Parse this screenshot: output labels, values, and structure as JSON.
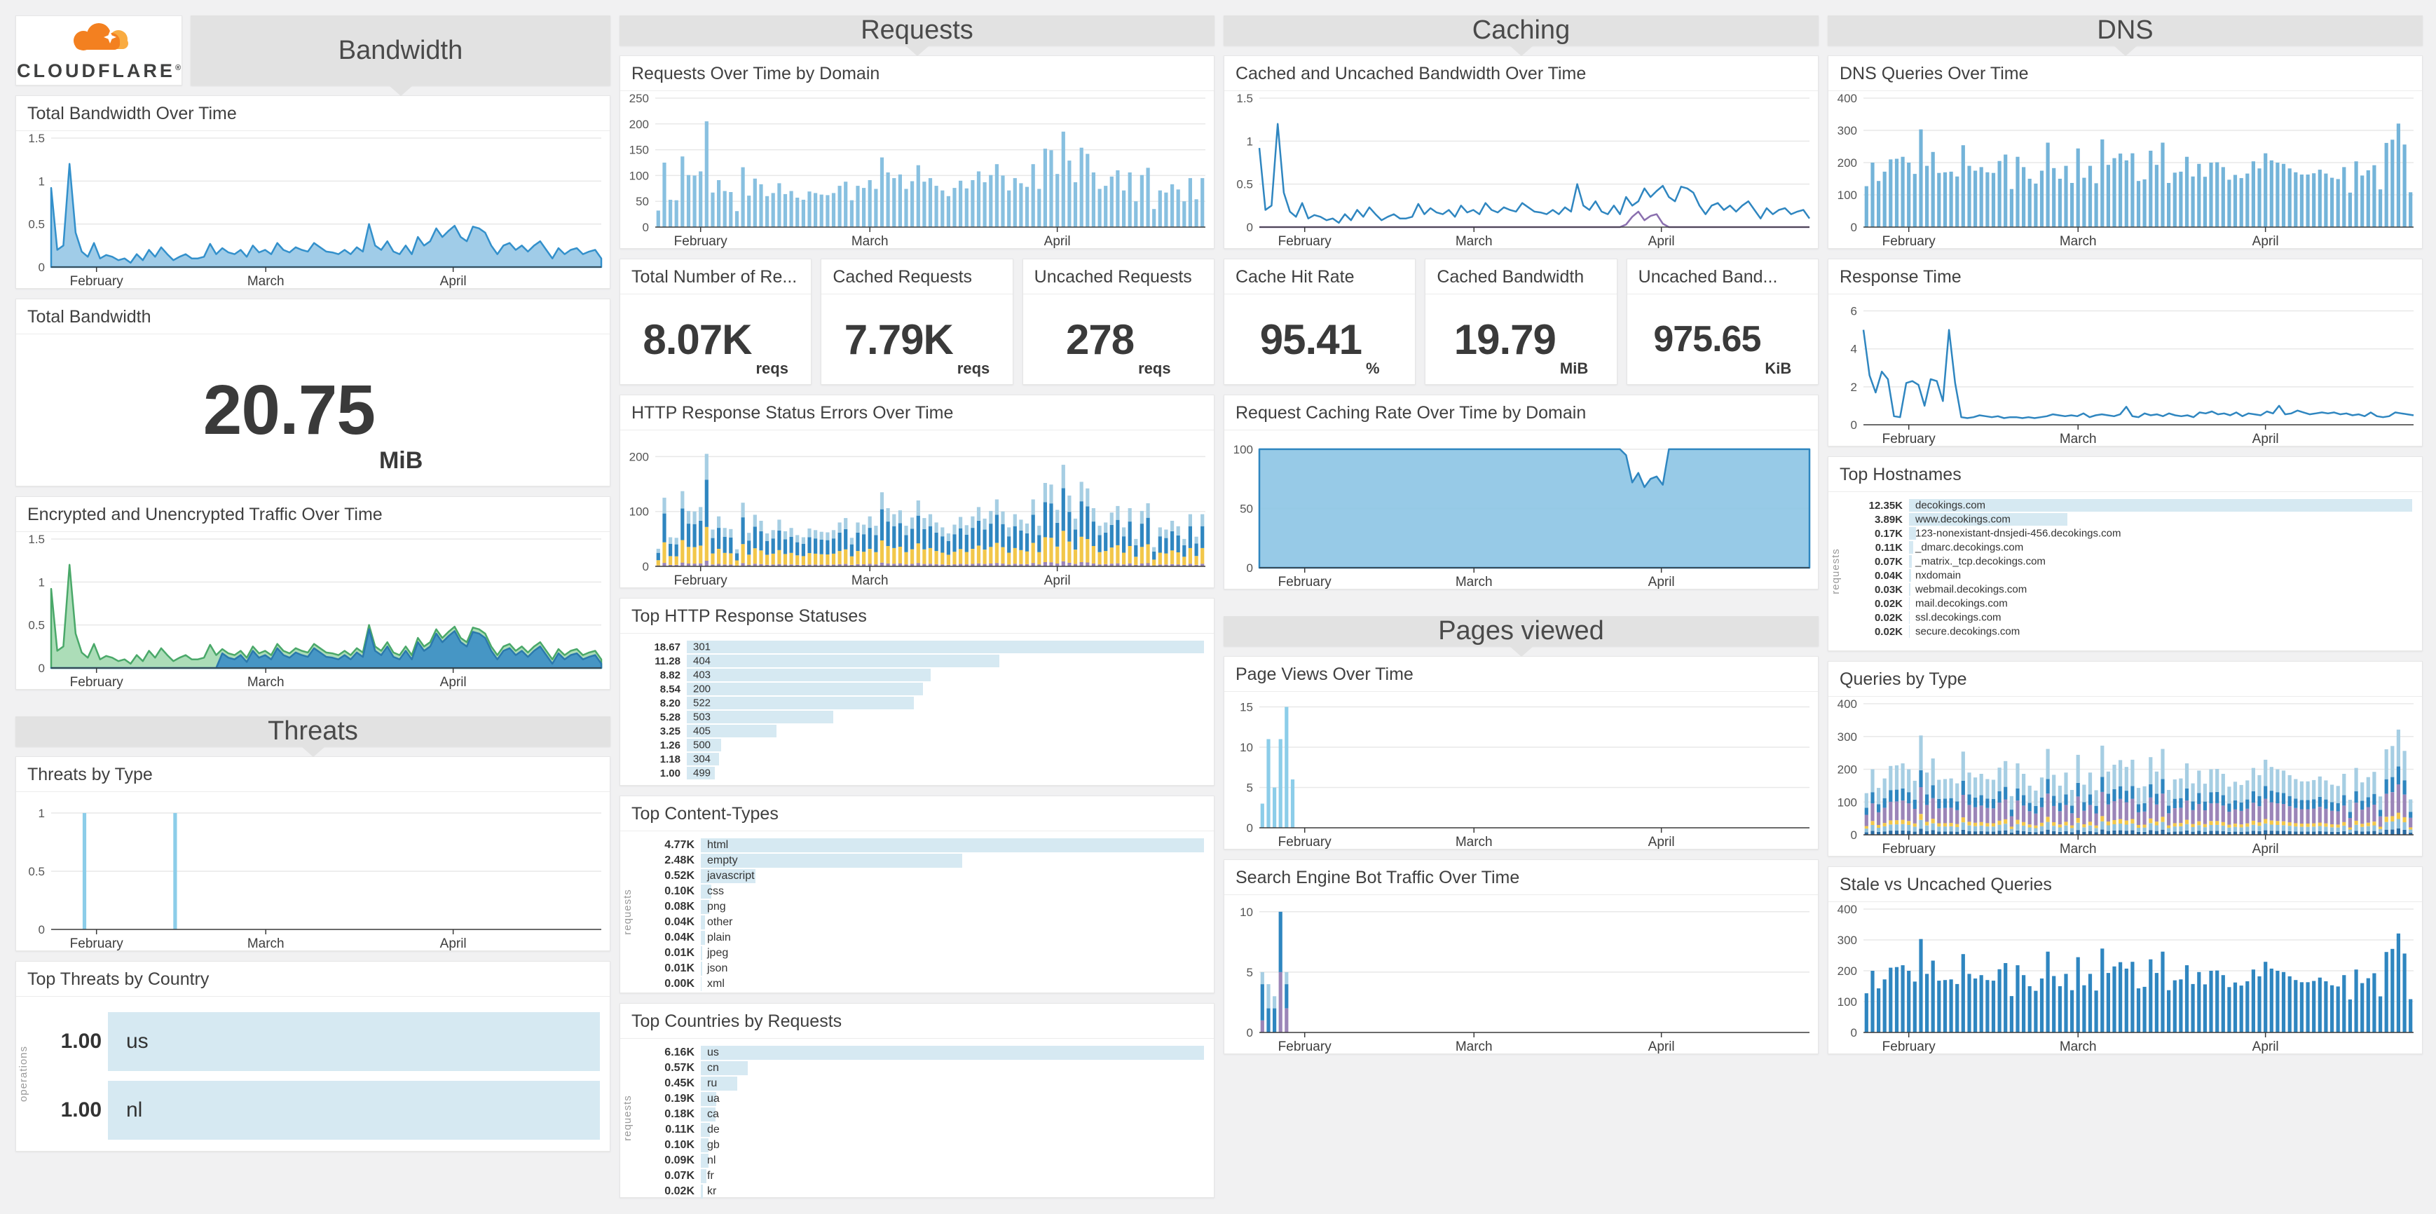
{
  "logo": {
    "brand": "CLOUDFLARE",
    "registered": "®"
  },
  "sections": {
    "bandwidth": "Bandwidth",
    "requests": "Requests",
    "caching": "Caching",
    "dns": "DNS",
    "threats": "Threats",
    "pages_viewed": "Pages viewed"
  },
  "titles": {
    "total_bw_over_time": "Total Bandwidth Over Time",
    "enc_traffic": "Encrypted and Unencrypted Traffic Over Time",
    "threats_by_type": "Threats by Type",
    "top_threats_country": "Top Threats by Country",
    "req_over_time": "Requests Over Time by Domain",
    "http_errors": "HTTP Response Status Errors Over Time",
    "top_statuses": "Top HTTP Response Statuses",
    "top_content_types": "Top Content-Types",
    "top_countries": "Top Countries by Requests",
    "cached_uncached_bw": "Cached and Uncached Bandwidth Over Time",
    "req_caching_rate": "Request Caching Rate Over Time by Domain",
    "page_views": "Page Views Over Time",
    "bot_traffic": "Search Engine Bot Traffic Over Time",
    "dns_queries": "DNS Queries Over Time",
    "response_time": "Response Time",
    "top_hostnames": "Top Hostnames",
    "queries_by_type": "Queries by Type",
    "stale_uncached": "Stale vs Uncached Queries"
  },
  "stats": {
    "total_bandwidth": {
      "title": "Total Bandwidth",
      "value": "20.75",
      "unit": "MiB"
    },
    "total_requests": {
      "title": "Total Number of Re...",
      "value": "8.07K",
      "unit": "reqs"
    },
    "cached_requests": {
      "title": "Cached Requests",
      "value": "7.79K",
      "unit": "reqs"
    },
    "uncached_requests": {
      "title": "Uncached Requests",
      "value": "278",
      "unit": "reqs"
    },
    "cache_hit_rate": {
      "title": "Cache Hit Rate",
      "value": "95.41",
      "unit": "%"
    },
    "cached_bandwidth": {
      "title": "Cached Bandwidth",
      "value": "19.79",
      "unit": "MiB"
    },
    "uncached_bandwidth": {
      "title": "Uncached Band...",
      "value": "975.65",
      "unit": "KiB"
    }
  },
  "colors": {
    "accent_blue": "#2f86c0",
    "light_bar": "#88c0e0",
    "pale_bar": "#8ccde9",
    "dns_bar": "#74b4d9",
    "hbar_fill": "#d6e9f2",
    "green_fill": "#a3d9b0",
    "green_stroke": "#4aa869",
    "yellow": "#f2c74a",
    "purple": "#9b85b8",
    "pale_blue": "#a6cee3",
    "header_bg": "#e2e2e2",
    "page_bg": "#f1f1f2",
    "cf_orange": "#f38020",
    "cf_light_orange": "#f9ab41"
  },
  "axis": {
    "months": [
      "February",
      "March",
      "April"
    ],
    "month_ticks": [
      7,
      35,
      66
    ],
    "points": 91
  },
  "timeseries": {
    "bandwidth_daily": [
      0.92,
      0.2,
      0.25,
      1.2,
      0.4,
      0.18,
      0.12,
      0.28,
      0.1,
      0.14,
      0.12,
      0.08,
      0.1,
      0.05,
      0.15,
      0.08,
      0.2,
      0.12,
      0.23,
      0.15,
      0.08,
      0.12,
      0.15,
      0.1,
      0.1,
      0.12,
      0.27,
      0.15,
      0.22,
      0.17,
      0.15,
      0.2,
      0.12,
      0.25,
      0.17,
      0.2,
      0.15,
      0.28,
      0.2,
      0.17,
      0.23,
      0.2,
      0.18,
      0.28,
      0.23,
      0.18,
      0.17,
      0.15,
      0.2,
      0.15,
      0.23,
      0.18,
      0.5,
      0.25,
      0.2,
      0.3,
      0.18,
      0.15,
      0.25,
      0.15,
      0.35,
      0.25,
      0.3,
      0.45,
      0.35,
      0.42,
      0.48,
      0.35,
      0.3,
      0.47,
      0.45,
      0.4,
      0.25,
      0.15,
      0.25,
      0.28,
      0.2,
      0.25,
      0.18,
      0.25,
      0.3,
      0.2,
      0.1,
      0.22,
      0.15,
      0.2,
      0.22,
      0.15,
      0.18,
      0.2,
      0.1
    ],
    "encrypted_daily": [
      0,
      0,
      0,
      0,
      0,
      0,
      0,
      0,
      0,
      0,
      0,
      0,
      0,
      0,
      0,
      0,
      0,
      0,
      0,
      0,
      0,
      0,
      0,
      0,
      0,
      0,
      0,
      0,
      0.17,
      0.12,
      0.1,
      0.15,
      0.07,
      0.2,
      0.12,
      0.15,
      0.1,
      0.23,
      0.15,
      0.12,
      0.18,
      0.15,
      0.13,
      0.23,
      0.18,
      0.13,
      0.12,
      0.1,
      0.15,
      0.1,
      0.18,
      0.13,
      0.45,
      0.2,
      0.15,
      0.25,
      0.13,
      0.1,
      0.2,
      0.1,
      0.3,
      0.2,
      0.25,
      0.4,
      0.3,
      0.37,
      0.43,
      0.3,
      0.25,
      0.42,
      0.4,
      0.35,
      0.2,
      0.1,
      0.2,
      0.23,
      0.15,
      0.2,
      0.13,
      0.2,
      0.25,
      0.15,
      0.05,
      0.17,
      0.1,
      0.15,
      0.17,
      0.1,
      0.13,
      0.15,
      0.05
    ],
    "requests_daily": [
      32,
      125,
      53,
      52,
      137,
      101,
      100,
      108,
      205,
      67,
      91,
      70,
      68,
      31,
      116,
      61,
      94,
      83,
      60,
      66,
      85,
      64,
      70,
      57,
      53,
      69,
      66,
      63,
      62,
      66,
      80,
      88,
      52,
      80,
      76,
      91,
      74,
      135,
      106,
      95,
      102,
      74,
      89,
      120,
      88,
      95,
      80,
      71,
      60,
      76,
      90,
      75,
      91,
      108,
      87,
      101,
      122,
      100,
      71,
      95,
      85,
      78,
      122,
      74,
      152,
      149,
      103,
      185,
      129,
      87,
      154,
      142,
      106,
      74,
      80,
      98,
      110,
      71,
      106,
      50,
      101,
      115,
      35,
      71,
      67,
      83,
      73,
      50,
      95,
      54,
      95
    ],
    "dns_daily": [
      127,
      200,
      143,
      172,
      210,
      212,
      218,
      200,
      165,
      303,
      190,
      233,
      168,
      170,
      172,
      157,
      254,
      190,
      175,
      186,
      170,
      168,
      205,
      225,
      118,
      218,
      186,
      150,
      135,
      175,
      262,
      183,
      150,
      190,
      137,
      244,
      153,
      190,
      136,
      272,
      193,
      214,
      228,
      207,
      229,
      143,
      148,
      237,
      193,
      262,
      137,
      169,
      172,
      218,
      157,
      196,
      156,
      200,
      201,
      186,
      147,
      162,
      152,
      166,
      204,
      182,
      229,
      207,
      200,
      196,
      182,
      170,
      163,
      163,
      167,
      178,
      166,
      153,
      149,
      186,
      107,
      204,
      160,
      176,
      192,
      117,
      261,
      271,
      321,
      256,
      108
    ],
    "response_time_daily": [
      5.0,
      2.6,
      1.7,
      2.8,
      2.4,
      0.45,
      0.4,
      2.2,
      2.3,
      2.1,
      1.0,
      2.4,
      2.3,
      1.25,
      5.0,
      2.2,
      0.4,
      0.35,
      0.4,
      0.5,
      0.45,
      0.4,
      0.45,
      0.35,
      0.4,
      0.4,
      0.35,
      0.4,
      0.35,
      0.4,
      0.45,
      0.55,
      0.5,
      0.45,
      0.5,
      0.45,
      0.6,
      0.4,
      0.5,
      0.55,
      0.5,
      0.45,
      0.55,
      0.95,
      0.45,
      0.4,
      0.6,
      0.5,
      0.55,
      0.45,
      0.6,
      0.5,
      0.45,
      0.5,
      0.4,
      0.65,
      0.6,
      0.7,
      0.55,
      0.6,
      0.5,
      0.65,
      0.45,
      0.6,
      0.55,
      0.5,
      0.7,
      0.6,
      1.0,
      0.55,
      0.6,
      0.75,
      0.65,
      0.55,
      0.6,
      0.65,
      0.6,
      0.65,
      0.55,
      0.6,
      0.5,
      0.55,
      0.45,
      0.65,
      0.45,
      0.4,
      0.45,
      0.65,
      0.6,
      0.55,
      0.5
    ],
    "caching_rate_daily": {
      "base": 100,
      "sparse": {
        "60": 95,
        "61": 72,
        "62": 80,
        "63": 68,
        "64": 75,
        "65": 77,
        "66": 70
      }
    },
    "uncached_bw_daily": {
      "base": 0,
      "sparse": {
        "60": 0.03,
        "61": 0.12,
        "62": 0.18,
        "63": 0.08,
        "64": 0.13,
        "65": 0.15,
        "66": 0.04
      }
    },
    "threats_daily": {
      "base": 0,
      "sparse": {
        "5": 1,
        "20": 1
      }
    },
    "page_views_daily": {
      "base": 0,
      "sparse": {
        "0": 3,
        "1": 11,
        "2": 5,
        "3": 11,
        "4": 15,
        "5": 6
      }
    },
    "bots_purple": {
      "base": 0,
      "sparse": {
        "0": 1,
        "3": 5,
        "4": 2
      }
    },
    "bots_blue": {
      "base": 0,
      "sparse": {
        "0": 3,
        "1": 2,
        "2": 2,
        "3": 5,
        "4": 2
      }
    },
    "bots_light": {
      "base": 0,
      "sparse": {
        "0": 1,
        "1": 2,
        "2": 1,
        "4": 1
      }
    }
  },
  "chart_data": [
    {
      "id": "bw_time",
      "type": "area",
      "title": "Total Bandwidth Over Time",
      "ylim": [
        0,
        1.5
      ],
      "yticks": [
        0,
        0.5,
        1,
        1.5
      ],
      "series": [
        {
          "name": "bandwidth",
          "values_from": "bandwidth_daily",
          "fill": "#96c7e6",
          "stroke": "#3390cb"
        }
      ]
    },
    {
      "id": "enc_time",
      "type": "area",
      "title": "Encrypted and Unencrypted Traffic Over Time",
      "ylim": [
        0,
        1.5
      ],
      "yticks": [
        0,
        0.5,
        1,
        1.5
      ],
      "series": [
        {
          "name": "unencrypted",
          "values_from": "bandwidth_daily",
          "fill": "#a3d9b0",
          "stroke": "#4aa869"
        },
        {
          "name": "encrypted",
          "values_from": "encrypted_daily",
          "fill": "#3b8ec6",
          "stroke": "#2b79ad"
        }
      ]
    },
    {
      "id": "threats_type",
      "type": "bar",
      "title": "Threats by Type",
      "ylim": [
        0,
        1.12
      ],
      "yticks": [
        0,
        0.5,
        1
      ],
      "color": "#8ccde9",
      "values_from": "threats_daily"
    },
    {
      "id": "req_domain",
      "type": "bar",
      "title": "Requests Over Time by Domain",
      "ylim": [
        0,
        250
      ],
      "yticks": [
        0,
        50,
        100,
        150,
        200,
        250
      ],
      "color": "#88c0e0",
      "values_from": "requests_daily"
    },
    {
      "id": "http_errors",
      "type": "stacked",
      "title": "HTTP Response Status Errors Over Time",
      "ylim": [
        0,
        235
      ],
      "yticks": [
        0,
        100,
        200
      ],
      "totals_from": "requests_daily",
      "split": [
        {
          "color": "#9b85b8",
          "frac": 0.05
        },
        {
          "color": "#f2c74a",
          "frac": 0.3
        },
        {
          "color": "#2f86c0",
          "frac": 0.42
        },
        {
          "color": "#a6cee3",
          "frac": 0.23
        }
      ]
    },
    {
      "id": "cache_bw",
      "type": "line",
      "title": "Cached and Uncached Bandwidth Over Time",
      "ylim": [
        0,
        1.5
      ],
      "yticks": [
        0,
        0.5,
        1,
        1.5
      ],
      "series": [
        {
          "name": "cached",
          "values_from": "bandwidth_daily",
          "stroke": "#2f86c0"
        },
        {
          "name": "uncached",
          "values_from": "uncached_bw_daily",
          "stroke": "#8a6fae"
        }
      ]
    },
    {
      "id": "cache_rate",
      "type": "area",
      "title": "Request Caching Rate Over Time by Domain",
      "ylim": [
        0,
        110
      ],
      "yticks": [
        0,
        50,
        100
      ],
      "series": [
        {
          "name": "caching-rate",
          "values_from": "caching_rate_daily",
          "fill": "#8cc4e4",
          "stroke": "#2f86c0"
        }
      ]
    },
    {
      "id": "page_views",
      "type": "bar",
      "title": "Page Views Over Time",
      "ylim": [
        0,
        16
      ],
      "yticks": [
        0,
        5,
        10,
        15
      ],
      "color": "#8ccde9",
      "values_from": "page_views_daily"
    },
    {
      "id": "bots",
      "type": "stacked-series",
      "title": "Search Engine Bot Traffic Over Time",
      "ylim": [
        0,
        10.8
      ],
      "yticks": [
        0,
        5,
        10
      ],
      "series": [
        {
          "color": "#9b85b8",
          "values_from": "bots_purple"
        },
        {
          "color": "#2f86c0",
          "values_from": "bots_blue"
        },
        {
          "color": "#a6cee3",
          "values_from": "bots_light"
        }
      ]
    },
    {
      "id": "dns_q",
      "type": "bar",
      "title": "DNS Queries Over Time",
      "ylim": [
        0,
        400
      ],
      "yticks": [
        0,
        100,
        200,
        300,
        400
      ],
      "color": "#74b4d9",
      "values_from": "dns_daily"
    },
    {
      "id": "resp_time",
      "type": "line",
      "title": "Response Time",
      "ylim": [
        0,
        6.5
      ],
      "yticks": [
        0,
        2,
        4,
        6
      ],
      "series": [
        {
          "name": "response-time",
          "values_from": "response_time_daily",
          "stroke": "#2f86c0"
        }
      ]
    },
    {
      "id": "q_type",
      "type": "stacked",
      "title": "Queries by Type",
      "ylim": [
        0,
        400
      ],
      "yticks": [
        0,
        100,
        200,
        300,
        400
      ],
      "totals_from": "dns_daily",
      "split": [
        {
          "color": "#2b6ca3",
          "frac": 0.06
        },
        {
          "color": "#8fc1dd",
          "frac": 0.09
        },
        {
          "color": "#f2c74a",
          "frac": 0.06
        },
        {
          "color": "#9b85b8",
          "frac": 0.27
        },
        {
          "color": "#2f86c0",
          "frac": 0.17
        },
        {
          "color": "#a6cee3",
          "frac": 0.35
        }
      ]
    },
    {
      "id": "stale_q",
      "type": "bar",
      "title": "Stale vs Uncached Queries",
      "ylim": [
        0,
        400
      ],
      "yticks": [
        0,
        100,
        200,
        300,
        400
      ],
      "color": "#2f86c0",
      "values_from": "dns_daily"
    }
  ],
  "lists": [
    {
      "id": "top_statuses",
      "ylabel": "",
      "variant": "tight",
      "rows": [
        {
          "value": "18.67",
          "label": "301",
          "pct": 100
        },
        {
          "value": "11.28",
          "label": "404",
          "pct": 60.4
        },
        {
          "value": "8.82",
          "label": "403",
          "pct": 47.2
        },
        {
          "value": "8.54",
          "label": "200",
          "pct": 45.7
        },
        {
          "value": "8.20",
          "label": "522",
          "pct": 43.9
        },
        {
          "value": "5.28",
          "label": "503",
          "pct": 28.3
        },
        {
          "value": "3.25",
          "label": "405",
          "pct": 17.4
        },
        {
          "value": "1.26",
          "label": "500",
          "pct": 6.7
        },
        {
          "value": "1.18",
          "label": "304",
          "pct": 6.3
        },
        {
          "value": "1.00",
          "label": "499",
          "pct": 5.4
        }
      ]
    },
    {
      "id": "top_content_types",
      "ylabel": "requests",
      "rows": [
        {
          "value": "4.77K",
          "label": "html",
          "pct": 100
        },
        {
          "value": "2.48K",
          "label": "empty",
          "pct": 52
        },
        {
          "value": "0.52K",
          "label": "javascript",
          "pct": 10.9
        },
        {
          "value": "0.10K",
          "label": "css",
          "pct": 2.1
        },
        {
          "value": "0.08K",
          "label": "png",
          "pct": 1.7
        },
        {
          "value": "0.04K",
          "label": "other",
          "pct": 0.9
        },
        {
          "value": "0.04K",
          "label": "plain",
          "pct": 0.9
        },
        {
          "value": "0.01K",
          "label": "jpeg",
          "pct": 0.3
        },
        {
          "value": "0.01K",
          "label": "json",
          "pct": 0.25
        },
        {
          "value": "0.00K",
          "label": "xml",
          "pct": 0.15
        }
      ]
    },
    {
      "id": "top_countries",
      "ylabel": "requests",
      "rows": [
        {
          "value": "6.16K",
          "label": "us",
          "pct": 100
        },
        {
          "value": "0.57K",
          "label": "cn",
          "pct": 9.3
        },
        {
          "value": "0.45K",
          "label": "ru",
          "pct": 7.3
        },
        {
          "value": "0.19K",
          "label": "ua",
          "pct": 3.1
        },
        {
          "value": "0.18K",
          "label": "ca",
          "pct": 2.9
        },
        {
          "value": "0.11K",
          "label": "de",
          "pct": 1.8
        },
        {
          "value": "0.10K",
          "label": "gb",
          "pct": 1.6
        },
        {
          "value": "0.09K",
          "label": "nl",
          "pct": 1.5
        },
        {
          "value": "0.07K",
          "label": "fr",
          "pct": 1.1
        },
        {
          "value": "0.02K",
          "label": "kr",
          "pct": 0.4
        }
      ]
    },
    {
      "id": "top_hostnames",
      "ylabel": "requests",
      "variant": "tight",
      "rows": [
        {
          "value": "12.35K",
          "label": "decokings.com",
          "pct": 100
        },
        {
          "value": "3.89K",
          "label": "www.decokings.com",
          "pct": 31.5
        },
        {
          "value": "0.17K",
          "label": "123-nonexistant-dnsjedi-456.decokings.com",
          "pct": 1.4
        },
        {
          "value": "0.11K",
          "label": "_dmarc.decokings.com",
          "pct": 0.9
        },
        {
          "value": "0.07K",
          "label": "_matrix._tcp.decokings.com",
          "pct": 0.6
        },
        {
          "value": "0.04K",
          "label": "nxdomain",
          "pct": 0.35
        },
        {
          "value": "0.03K",
          "label": "webmail.decokings.com",
          "pct": 0.25
        },
        {
          "value": "0.02K",
          "label": "mail.decokings.com",
          "pct": 0.2
        },
        {
          "value": "0.02K",
          "label": "ssl.decokings.com",
          "pct": 0.16
        },
        {
          "value": "0.02K",
          "label": "secure.decokings.com",
          "pct": 0.16
        }
      ]
    },
    {
      "id": "top_threat_countries",
      "ylabel": "operations",
      "variant": "tall",
      "rows": [
        {
          "value": "1.00",
          "label": "us",
          "pct": 100
        },
        {
          "value": "1.00",
          "label": "nl",
          "pct": 100
        }
      ]
    }
  ]
}
